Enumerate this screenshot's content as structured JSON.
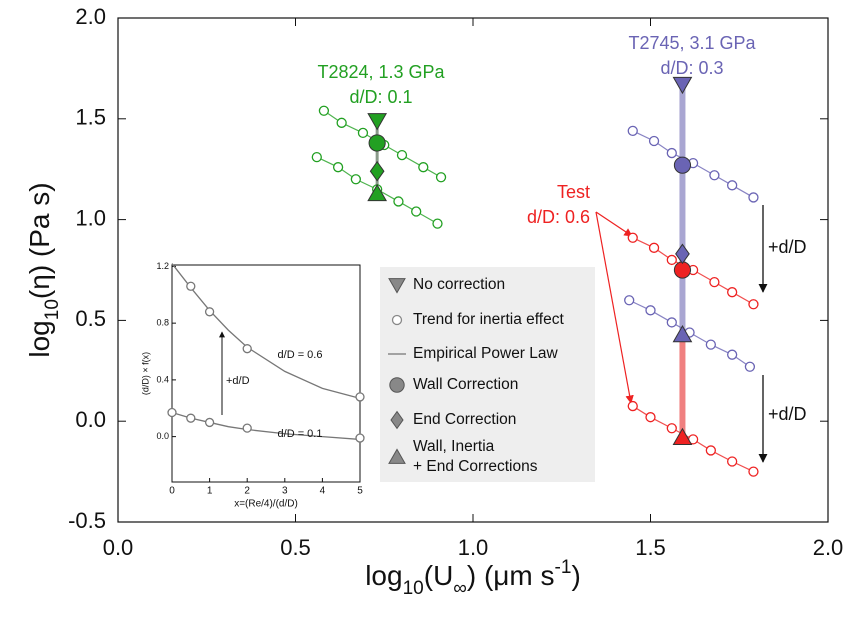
{
  "chart_data": [
    {
      "type": "scatter",
      "xlim": [
        0,
        2
      ],
      "ylim": [
        -0.5,
        2
      ],
      "xticks": [
        {
          "value": 0,
          "label": "0.0"
        },
        {
          "value": 0.5,
          "label": "0.5"
        },
        {
          "value": 1,
          "label": "1.0"
        },
        {
          "value": 1.5,
          "label": "1.5"
        },
        {
          "value": 2,
          "label": "2.0"
        }
      ],
      "yticks": [
        {
          "value": -0.5,
          "label": "-0.5"
        },
        {
          "value": 0,
          "label": "0.0"
        },
        {
          "value": 0.5,
          "label": "0.5"
        },
        {
          "value": 1,
          "label": "1.0"
        },
        {
          "value": 1.5,
          "label": "1.5"
        },
        {
          "value": 2,
          "label": "2.0"
        }
      ],
      "x_label": [
        {
          "text": "log"
        },
        {
          "text": "10",
          "shift": "sub"
        },
        {
          "text": "(U"
        },
        {
          "text": "∞",
          "shift": "sub"
        },
        {
          "text": ") (μm s"
        },
        {
          "text": "-1",
          "shift": "super"
        },
        {
          "text": ")"
        }
      ],
      "y_label": [
        {
          "text": "log"
        },
        {
          "text": "10",
          "shift": "sub"
        },
        {
          "text": "(η) (Pa s)"
        }
      ],
      "trends": [
        {
          "color": "#22a022",
          "x": [
            0.58,
            0.63,
            0.69,
            0.75,
            0.8,
            0.86,
            0.91
          ],
          "y": [
            1.54,
            1.48,
            1.43,
            1.37,
            1.32,
            1.26,
            1.21
          ]
        },
        {
          "color": "#22a022",
          "x": [
            0.56,
            0.62,
            0.67,
            0.73,
            0.79,
            0.84,
            0.9
          ],
          "y": [
            1.31,
            1.26,
            1.2,
            1.15,
            1.09,
            1.04,
            0.98
          ]
        },
        {
          "color": "#6a64b4",
          "x": [
            1.45,
            1.51,
            1.56,
            1.62,
            1.68,
            1.73,
            1.79
          ],
          "y": [
            1.44,
            1.39,
            1.33,
            1.28,
            1.22,
            1.17,
            1.11
          ]
        },
        {
          "color": "#6a64b4",
          "x": [
            1.44,
            1.5,
            1.56,
            1.61,
            1.67,
            1.73,
            1.78
          ],
          "y": [
            0.6,
            0.55,
            0.49,
            0.44,
            0.38,
            0.33,
            0.27
          ]
        },
        {
          "color": "#ee2222",
          "x": [
            1.45,
            1.51,
            1.56,
            1.62,
            1.68,
            1.73,
            1.79
          ],
          "y": [
            0.91,
            0.86,
            0.8,
            0.75,
            0.69,
            0.64,
            0.58
          ]
        },
        {
          "color": "#ee2222",
          "x": [
            1.45,
            1.5,
            1.56,
            1.62,
            1.67,
            1.73,
            1.79
          ],
          "y": [
            0.075,
            0.02,
            -0.035,
            -0.09,
            -0.145,
            -0.2,
            -0.25
          ]
        }
      ],
      "bars": [
        {
          "color": "#8a9a8a",
          "x": 0.73,
          "y": [
            1.13,
            1.49
          ]
        },
        {
          "color": "#a9a6d2",
          "x": 1.59,
          "y": [
            0.43,
            1.67
          ]
        },
        {
          "color": "#f08080",
          "x": 1.59,
          "y": [
            -0.08,
            0.43
          ]
        }
      ],
      "points": [
        {
          "marker": "triangle-down",
          "color": "#22a022",
          "x": 0.73,
          "y": 1.49
        },
        {
          "marker": "circle",
          "color": "#22a022",
          "x": 0.73,
          "y": 1.38
        },
        {
          "marker": "diamond",
          "color": "#22a022",
          "x": 0.73,
          "y": 1.24
        },
        {
          "marker": "triangle-up",
          "color": "#22a022",
          "x": 0.73,
          "y": 1.13
        },
        {
          "marker": "triangle-down",
          "color": "#6a64b4",
          "x": 1.59,
          "y": 1.67
        },
        {
          "marker": "circle",
          "color": "#6a64b4",
          "x": 1.59,
          "y": 1.27
        },
        {
          "marker": "circle",
          "color": "#ee2222",
          "x": 1.59,
          "y": 0.75
        },
        {
          "marker": "diamond",
          "color": "#6a64b4",
          "x": 1.59,
          "y": 0.83
        },
        {
          "marker": "triangle-up",
          "color": "#6a64b4",
          "x": 1.59,
          "y": 0.43
        },
        {
          "marker": "triangle-up",
          "color": "#ee2222",
          "x": 1.59,
          "y": -0.08
        }
      ],
      "annotations": [
        {
          "text": [
            "T2824, 1.3 GPa",
            "d/D: 0.1"
          ],
          "color": "#22a022"
        },
        {
          "text": [
            "T2745, 3.1 GPa",
            "d/D: 0.3"
          ],
          "color": "#6a64b4"
        },
        {
          "text": [
            "Test",
            "d/D: 0.6"
          ],
          "color": "#ee2222"
        },
        {
          "text": [
            "+d/D"
          ],
          "color": "#111111"
        },
        {
          "text": [
            "+d/D"
          ],
          "color": "#111111"
        }
      ],
      "legend": [
        {
          "label": [
            "No correction"
          ],
          "marker": "triangle-down"
        },
        {
          "label": [
            "Trend for inertia effect"
          ],
          "marker": "open-circle"
        },
        {
          "label": [
            "Empirical Power Law"
          ],
          "marker": "line"
        },
        {
          "label": [
            "Wall Correction"
          ],
          "marker": "circle"
        },
        {
          "label": [
            "End Correction"
          ],
          "marker": "diamond"
        },
        {
          "label": [
            "Wall, Inertia",
            "+ End Corrections"
          ],
          "marker": "triangle-up"
        }
      ]
    },
    {
      "type": "line",
      "xlim": [
        0,
        5
      ],
      "ylim": [
        -0.32,
        1.21
      ],
      "xticks": [
        0,
        1,
        2,
        3,
        4,
        5
      ],
      "yticks": [
        {
          "value": 0,
          "label": "0.0"
        },
        0.4,
        0.8,
        1.2
      ],
      "x_label": "x=(Re/4)/(d/D)",
      "y_label": "(d/D) × f(x)",
      "series": [
        {
          "style": "line",
          "color": "#777777",
          "x": [
            0,
            0.5,
            1,
            1.5,
            2,
            3,
            4,
            5
          ],
          "y": [
            1.22,
            1.05,
            0.89,
            0.75,
            0.63,
            0.46,
            0.34,
            0.27
          ]
        },
        {
          "style": "line",
          "color": "#777777",
          "x": [
            0,
            0.5,
            1,
            1.5,
            2,
            3,
            4,
            5
          ],
          "y": [
            0.17,
            0.13,
            0.1,
            0.07,
            0.05,
            0.02,
            0.0,
            -0.02
          ]
        },
        {
          "style": "markers",
          "color": "#777777",
          "x": [
            0.5,
            1,
            2,
            5
          ],
          "y": [
            1.06,
            0.88,
            0.62,
            0.28
          ]
        },
        {
          "style": "markers",
          "color": "#777777",
          "x": [
            0,
            0.5,
            1,
            2,
            5
          ],
          "y": [
            0.17,
            0.13,
            0.1,
            0.06,
            -0.01
          ]
        }
      ],
      "annotations": [
        "d/D = 0.6",
        "d/D = 0.1",
        "+d/D"
      ]
    }
  ]
}
